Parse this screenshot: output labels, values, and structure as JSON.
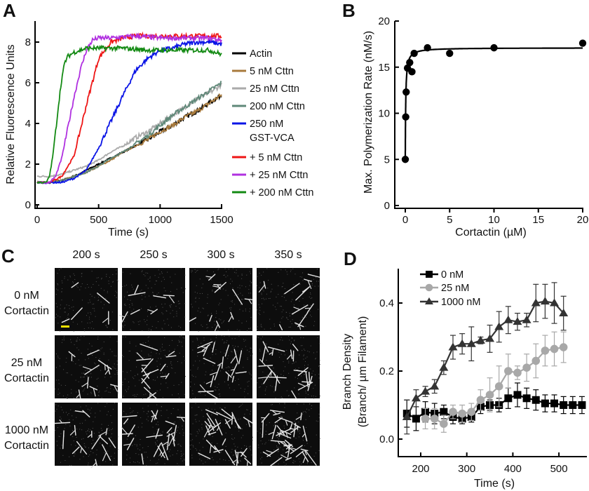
{
  "panels": {
    "a": "A",
    "b": "B",
    "c": "C",
    "d": "D"
  },
  "chart_data": [
    {
      "id": "A",
      "type": "line",
      "xlabel": "Time (s)",
      "ylabel": "Relative Fluorescence Units",
      "xlim": [
        0,
        1500
      ],
      "ylim": [
        0,
        9
      ],
      "xticks": [
        "0",
        "500",
        "1000",
        "1500"
      ],
      "yticks": [
        "0",
        "2",
        "4",
        "6",
        "8"
      ],
      "legend_position": "right",
      "series": [
        {
          "name": "Actin",
          "color": "#000000",
          "x": [
            0,
            100,
            200,
            300,
            400,
            500,
            600,
            700,
            800,
            900,
            1000,
            1100,
            1200,
            1300,
            1400,
            1500
          ],
          "y": [
            1.1,
            1.1,
            1.2,
            1.4,
            1.7,
            2.0,
            2.3,
            2.6,
            2.9,
            3.2,
            3.6,
            3.9,
            4.3,
            4.6,
            5.0,
            5.4
          ]
        },
        {
          "name": "5 nM Cttn",
          "color": "#a87a3c",
          "x": [
            0,
            100,
            200,
            300,
            400,
            500,
            600,
            700,
            800,
            900,
            1000,
            1100,
            1200,
            1300,
            1400,
            1500
          ],
          "y": [
            1.1,
            1.1,
            1.2,
            1.4,
            1.6,
            1.9,
            2.2,
            2.6,
            2.9,
            3.2,
            3.6,
            3.9,
            4.3,
            4.6,
            5.0,
            5.4
          ]
        },
        {
          "name": "25 nM Cttn",
          "color": "#aaaaaa",
          "x": [
            0,
            100,
            200,
            300,
            400,
            500,
            600,
            700,
            800,
            900,
            1000,
            1100,
            1200,
            1300,
            1400,
            1500
          ],
          "y": [
            1.4,
            1.4,
            1.5,
            1.7,
            1.9,
            2.2,
            2.6,
            2.9,
            3.3,
            3.6,
            4.0,
            4.4,
            4.8,
            5.2,
            5.5,
            5.9
          ]
        },
        {
          "name": "200 nM Cttn",
          "color": "#5f8878",
          "x": [
            0,
            100,
            200,
            300,
            400,
            500,
            600,
            700,
            800,
            900,
            1000,
            1100,
            1200,
            1300,
            1400,
            1500
          ],
          "y": [
            1.1,
            1.1,
            1.2,
            1.4,
            1.6,
            1.9,
            2.3,
            2.6,
            3.0,
            3.4,
            3.9,
            4.4,
            4.8,
            5.2,
            5.6,
            6.0
          ]
        },
        {
          "name": "250 nM",
          "name2": "GST-VCA",
          "color": "#0a14e6",
          "x": [
            0,
            100,
            200,
            300,
            400,
            500,
            600,
            700,
            800,
            900,
            1000,
            1100,
            1200,
            1300,
            1400,
            1500
          ],
          "y": [
            1.1,
            1.1,
            1.1,
            1.3,
            1.7,
            2.8,
            4.1,
            5.4,
            6.6,
            7.2,
            7.6,
            7.7,
            7.9,
            8.0,
            8.0,
            7.9
          ]
        },
        {
          "name": "+ 5 nM Cttn",
          "color": "#ee1515",
          "x": [
            0,
            100,
            200,
            300,
            400,
            500,
            600,
            700,
            800,
            1000,
            1200,
            1400,
            1500
          ],
          "y": [
            1.1,
            1.1,
            1.4,
            2.4,
            4.9,
            7.2,
            8.0,
            8.2,
            8.3,
            8.3,
            8.3,
            8.3,
            8.3
          ]
        },
        {
          "name": "+ 25 nM Cttn",
          "color": "#b030e0",
          "x": [
            0,
            100,
            150,
            200,
            250,
            300,
            350,
            400,
            450,
            500,
            600,
            800,
            1000,
            1200,
            1400,
            1500
          ],
          "y": [
            1.1,
            1.1,
            1.4,
            2.3,
            3.8,
            5.3,
            6.6,
            7.6,
            8.1,
            8.2,
            8.2,
            8.3,
            8.2,
            8.2,
            8.2,
            8.1
          ]
        },
        {
          "name": "+ 200 nM Cttn",
          "color": "#138a13",
          "x": [
            0,
            75,
            100,
            125,
            150,
            175,
            200,
            225,
            250,
            300,
            400,
            500,
            700,
            900,
            1100,
            1300,
            1400,
            1500
          ],
          "y": [
            1.1,
            1.1,
            1.4,
            2.3,
            3.6,
            5.0,
            6.2,
            7.0,
            7.3,
            7.5,
            7.7,
            7.7,
            7.7,
            7.6,
            7.6,
            7.6,
            7.6,
            7.4
          ]
        }
      ]
    },
    {
      "id": "B",
      "type": "scatter",
      "xlabel": "Cortactin (µM)",
      "ylabel": "Max. Polymerization Rate (nM/s)",
      "xlim": [
        0,
        20
      ],
      "ylim": [
        0,
        20
      ],
      "xticks": [
        "0",
        "5",
        "10",
        "15",
        "20"
      ],
      "yticks": [
        "0",
        "5",
        "10",
        "15",
        "20"
      ],
      "x": [
        0,
        0.05,
        0.1,
        0.25,
        0.5,
        0.75,
        1,
        2.5,
        5,
        10,
        20
      ],
      "y": [
        5.0,
        9.6,
        12.3,
        14.9,
        15.5,
        14.5,
        16.5,
        17.1,
        16.5,
        17.1,
        17.6
      ],
      "fit": {
        "base": 5.0,
        "amplitude": 12.1,
        "k": 0.05
      }
    },
    {
      "id": "D",
      "type": "line",
      "xlabel": "Time (s)",
      "ylabel": "Branch Density",
      "ylabel2": "(Branch/ µm Filament)",
      "xlim": [
        160,
        560
      ],
      "ylim": [
        -0.05,
        0.5
      ],
      "xticks": [
        "200",
        "300",
        "400",
        "500"
      ],
      "yticks": [
        "0.0",
        "0.2",
        "0.4"
      ],
      "legend_position": "top-left",
      "series": [
        {
          "name": "0 nM",
          "marker": "square",
          "color": "#000000",
          "x": [
            170,
            190,
            210,
            230,
            250,
            270,
            290,
            310,
            330,
            350,
            370,
            390,
            410,
            430,
            450,
            470,
            490,
            510,
            530,
            550
          ],
          "y": [
            0.075,
            0.06,
            0.08,
            0.075,
            0.08,
            0.065,
            0.06,
            0.065,
            0.095,
            0.1,
            0.1,
            0.12,
            0.13,
            0.12,
            0.115,
            0.105,
            0.105,
            0.1,
            0.1,
            0.1
          ],
          "err": [
            0.04,
            0.035,
            0.03,
            0.03,
            0.02,
            0.02,
            0.015,
            0.015,
            0.02,
            0.015,
            0.02,
            0.03,
            0.035,
            0.03,
            0.03,
            0.025,
            0.025,
            0.025,
            0.025,
            0.025
          ]
        },
        {
          "name": "25 nM",
          "marker": "circle",
          "color": "#a8a8a8",
          "x": [
            210,
            230,
            250,
            270,
            290,
            310,
            330,
            350,
            370,
            390,
            410,
            430,
            450,
            470,
            490,
            510
          ],
          "y": [
            0.06,
            0.06,
            0.045,
            0.08,
            0.075,
            0.08,
            0.115,
            0.13,
            0.155,
            0.2,
            0.195,
            0.21,
            0.23,
            0.26,
            0.265,
            0.27
          ],
          "err": [
            0.03,
            0.03,
            0.025,
            0.02,
            0.025,
            0.025,
            0.03,
            0.05,
            0.06,
            0.05,
            0.02,
            0.04,
            0.05,
            0.045,
            0.05,
            0.045
          ]
        },
        {
          "name": "1000 nM",
          "marker": "triangle",
          "color": "#333333",
          "x": [
            170,
            190,
            210,
            230,
            250,
            270,
            290,
            310,
            330,
            350,
            370,
            390,
            410,
            430,
            450,
            470,
            490,
            510
          ],
          "y": [
            0.065,
            0.12,
            0.14,
            0.155,
            0.21,
            0.27,
            0.28,
            0.28,
            0.29,
            0.295,
            0.33,
            0.35,
            0.345,
            0.35,
            0.4,
            0.405,
            0.4,
            0.37
          ],
          "err": [
            0.05,
            0.025,
            0.015,
            0.02,
            0.02,
            0.035,
            0.03,
            0.05,
            0.01,
            0.04,
            0.045,
            0.04,
            0.025,
            0.02,
            0.055,
            0.05,
            0.06,
            0.05
          ]
        }
      ]
    }
  ],
  "micrographs": {
    "columns": [
      "200 s",
      "250 s",
      "300 s",
      "350 s"
    ],
    "rows": [
      {
        "line1": "0 nM",
        "line2": "Cortactin",
        "density": 5
      },
      {
        "line1": "25 nM",
        "line2": "Cortactin",
        "density": 9
      },
      {
        "line1": "1000 nM",
        "line2": "Cortactin",
        "density": 14
      }
    ],
    "scale_bar_color": "#f0e000"
  }
}
